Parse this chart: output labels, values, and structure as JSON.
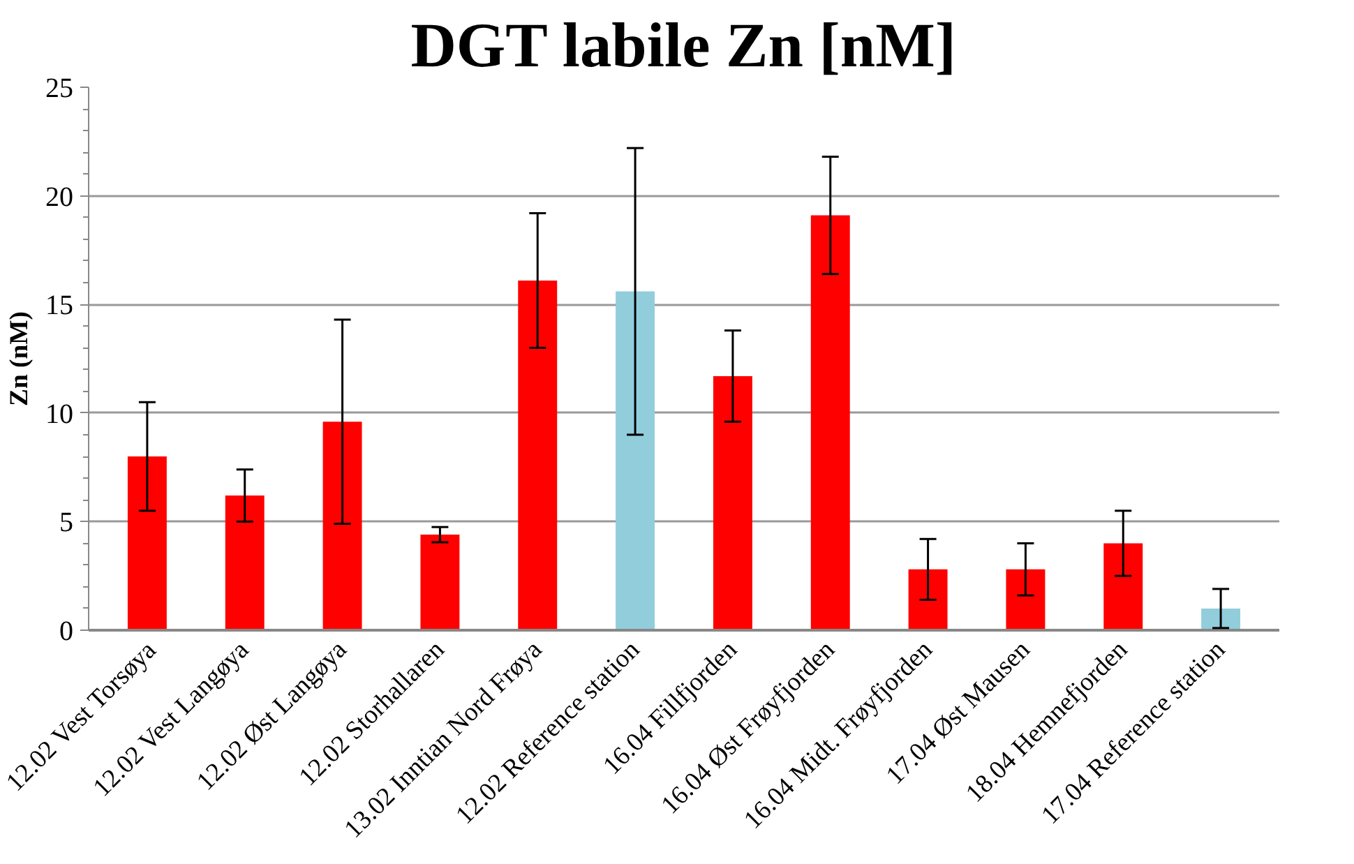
{
  "chart_data": {
    "type": "bar",
    "title": "DGT labile Zn [nM]",
    "ylabel": "Zn (nM)",
    "categories": [
      "12.02 Vest Torsøya",
      "12.02 Vest Langøya",
      "12.02 Øst Langøya",
      "12.02 Storhallaren",
      "13.02 Inntian Nord Frøya",
      "12.02 Reference station",
      "16.04 Fillfjorden",
      "16.04 Øst Frøyfjorden",
      "16.04 Midt. Frøyfjorden",
      "17.04 Øst Mausen",
      "18.04 Hemnefjorden",
      "17.04 Reference station"
    ],
    "values": [
      8.0,
      6.2,
      9.6,
      4.4,
      16.1,
      15.6,
      11.7,
      19.1,
      2.8,
      2.8,
      4.0,
      1.0
    ],
    "errors": [
      2.5,
      1.2,
      4.7,
      0.35,
      3.1,
      6.6,
      2.1,
      2.7,
      1.4,
      1.2,
      1.5,
      0.9
    ],
    "colors": [
      "#ff0000",
      "#ff0000",
      "#ff0000",
      "#ff0000",
      "#ff0000",
      "#92cddc",
      "#ff0000",
      "#ff0000",
      "#ff0000",
      "#ff0000",
      "#ff0000",
      "#92cddc"
    ],
    "ylim": [
      0,
      25
    ],
    "yticks": [
      0,
      5,
      10,
      15,
      20,
      25
    ],
    "grid": "y"
  }
}
